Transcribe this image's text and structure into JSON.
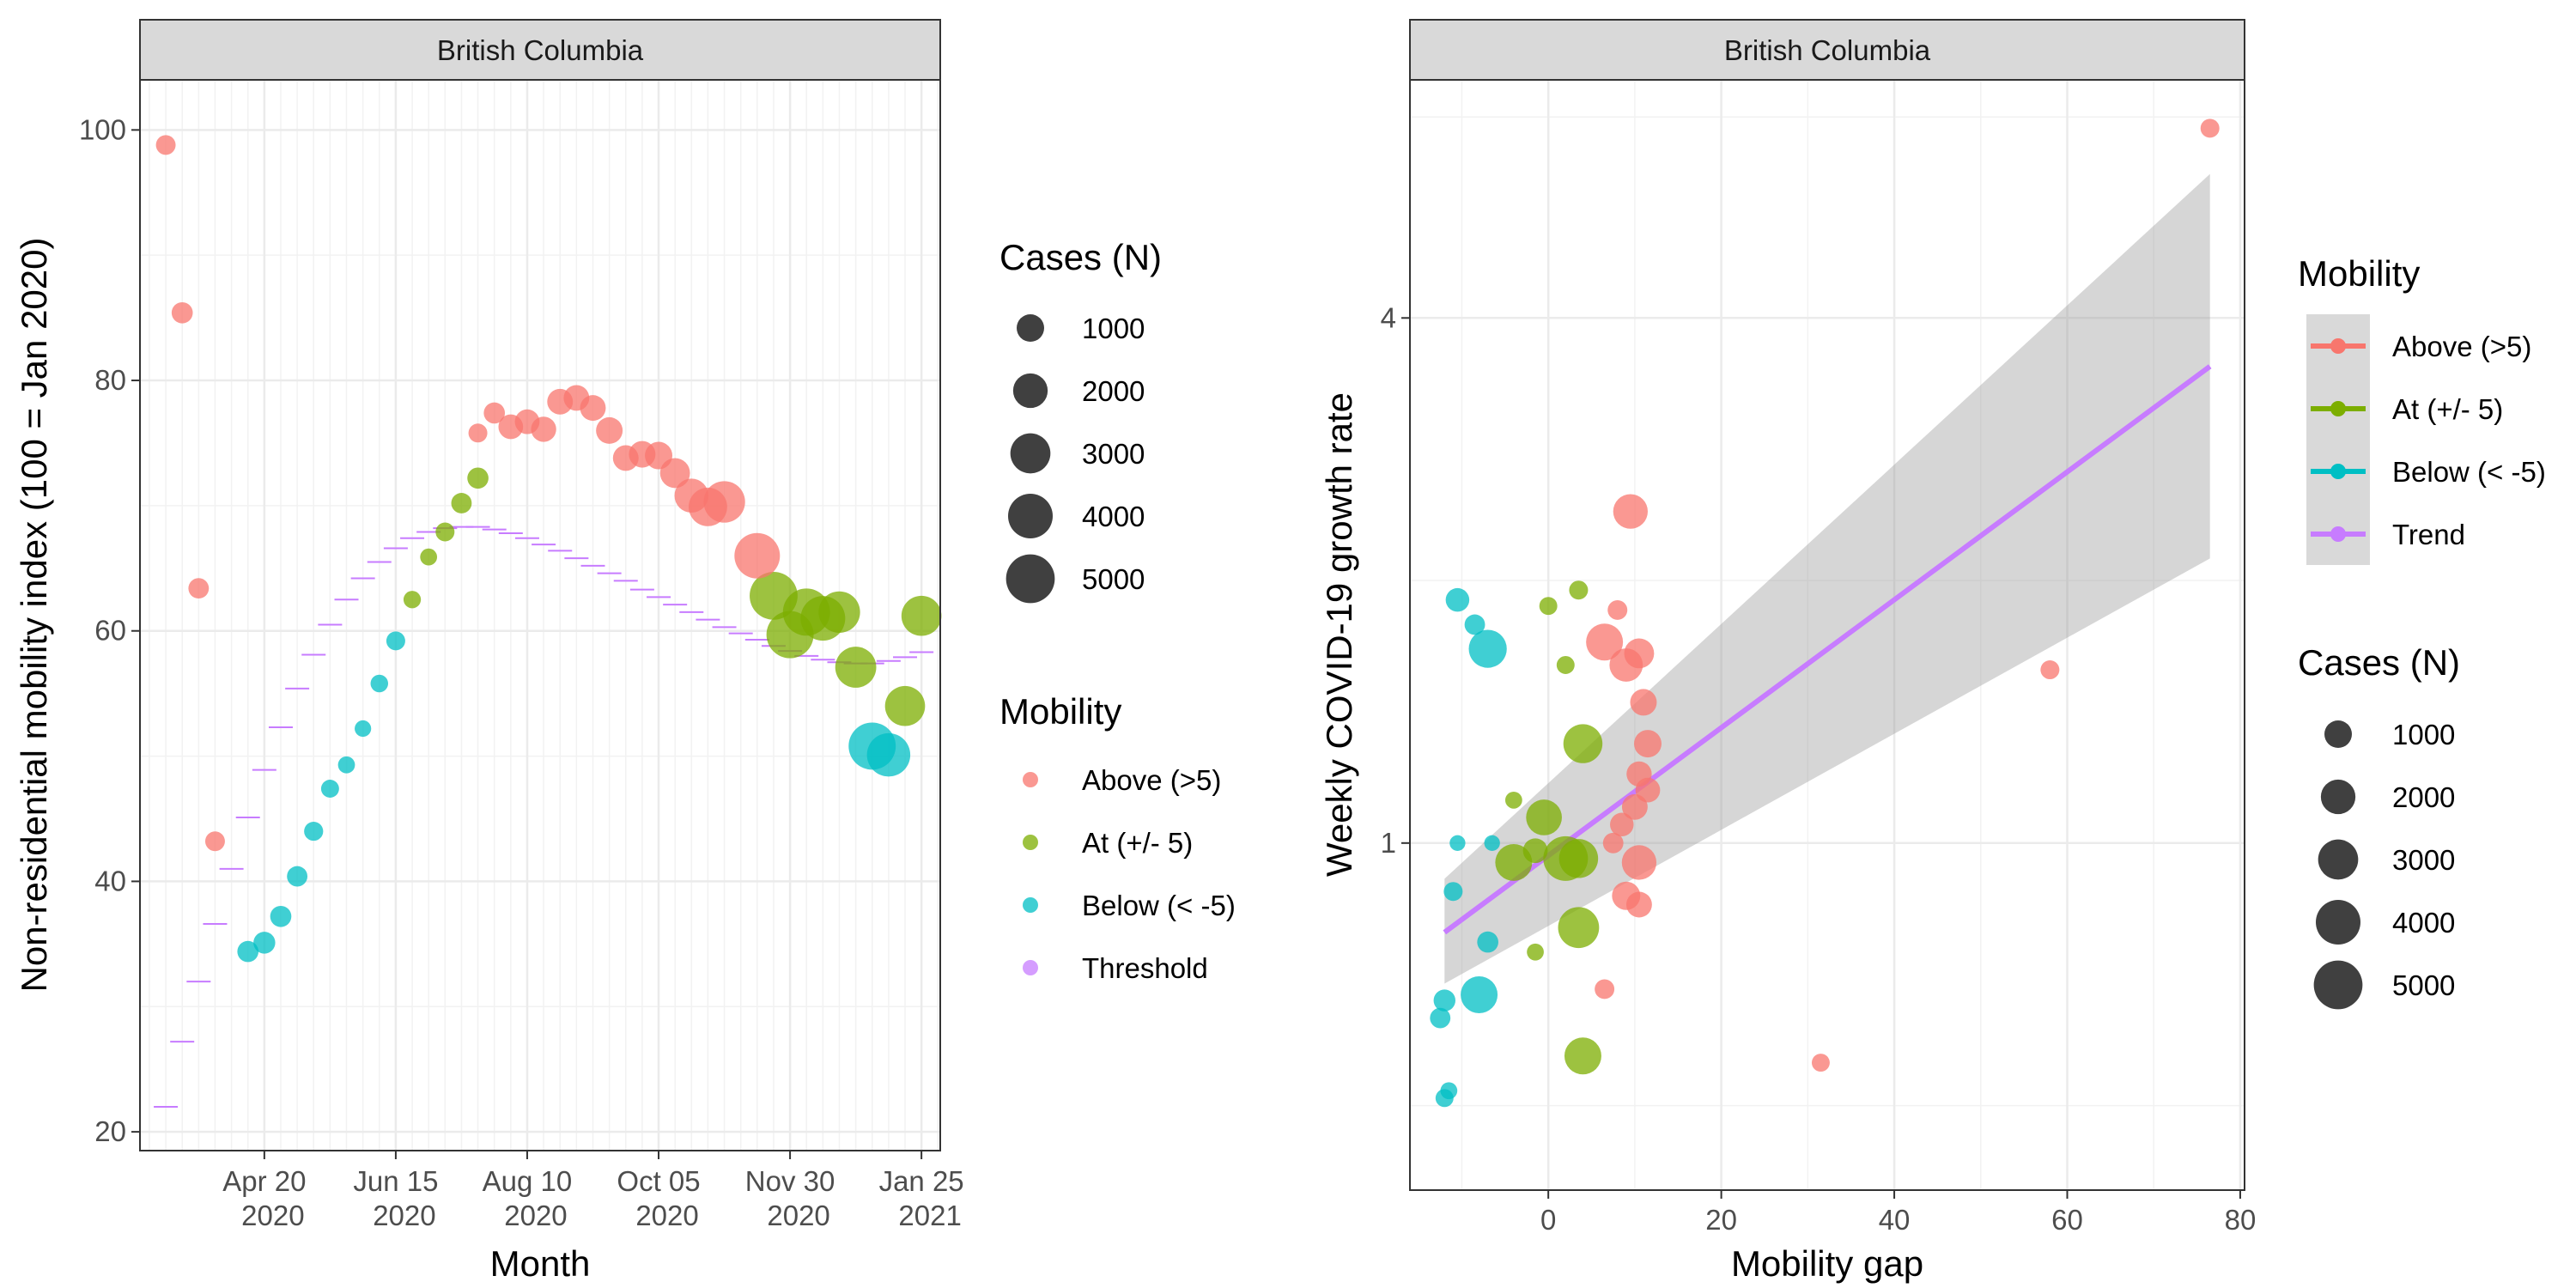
{
  "chart_data": [
    {
      "type": "scatter",
      "strip_title": "British Columbia",
      "xlabel": "Month",
      "ylabel": "Non-residential mobility index (100 = Jan 2020)",
      "x_ticks": [
        {
          "date": "2020-04-20",
          "label_top": "Apr 20",
          "label_bottom": "2020"
        },
        {
          "date": "2020-06-15",
          "label_top": "Jun 15",
          "label_bottom": "2020"
        },
        {
          "date": "2020-08-10",
          "label_top": "Aug 10",
          "label_bottom": "2020"
        },
        {
          "date": "2020-10-05",
          "label_top": "Oct 05",
          "label_bottom": "2020"
        },
        {
          "date": "2020-11-30",
          "label_top": "Nov 30",
          "label_bottom": "2020"
        },
        {
          "date": "2021-01-25",
          "label_top": "Jan 25",
          "label_bottom": "2021"
        }
      ],
      "y_ticks": [
        "20",
        "40",
        "60",
        "80",
        "100"
      ],
      "xlim": [
        "2020-02-27",
        "2021-02-02"
      ],
      "ylim": [
        18.5,
        104
      ],
      "grid": true,
      "series": [
        {
          "name": "Above (>5)",
          "color": "#F8766D",
          "points": [
            {
              "x": "2020-03-09",
              "y": 98.8,
              "cases": 300
            },
            {
              "x": "2020-03-16",
              "y": 85.4,
              "cases": 400
            },
            {
              "x": "2020-03-23",
              "y": 63.4,
              "cases": 350
            },
            {
              "x": "2020-03-30",
              "y": 43.2,
              "cases": 300
            },
            {
              "x": "2020-07-20",
              "y": 75.8,
              "cases": 250
            },
            {
              "x": "2020-07-27",
              "y": 77.4,
              "cases": 400
            },
            {
              "x": "2020-08-03",
              "y": 76.3,
              "cases": 700
            },
            {
              "x": "2020-08-10",
              "y": 76.7,
              "cases": 700
            },
            {
              "x": "2020-08-17",
              "y": 76.1,
              "cases": 750
            },
            {
              "x": "2020-08-24",
              "y": 78.3,
              "cases": 800
            },
            {
              "x": "2020-08-31",
              "y": 78.6,
              "cases": 800
            },
            {
              "x": "2020-09-07",
              "y": 77.8,
              "cases": 800
            },
            {
              "x": "2020-09-14",
              "y": 76.0,
              "cases": 900
            },
            {
              "x": "2020-09-21",
              "y": 73.8,
              "cases": 800
            },
            {
              "x": "2020-09-28",
              "y": 74.1,
              "cases": 900
            },
            {
              "x": "2020-10-05",
              "y": 74.0,
              "cases": 1000
            },
            {
              "x": "2020-10-12",
              "y": 72.6,
              "cases": 1300
            },
            {
              "x": "2020-10-19",
              "y": 70.8,
              "cases": 1900
            },
            {
              "x": "2020-10-26",
              "y": 69.9,
              "cases": 2700
            },
            {
              "x": "2020-11-02",
              "y": 70.3,
              "cases": 3300
            },
            {
              "x": "2020-11-16",
              "y": 66.0,
              "cases": 4200
            }
          ]
        },
        {
          "name": "At (+/- 5)",
          "color": "#7CAE00",
          "points": [
            {
              "x": "2020-06-22",
              "y": 62.5,
              "cases": 170
            },
            {
              "x": "2020-06-29",
              "y": 65.9,
              "cases": 150
            },
            {
              "x": "2020-07-06",
              "y": 67.9,
              "cases": 250
            },
            {
              "x": "2020-07-13",
              "y": 70.2,
              "cases": 350
            },
            {
              "x": "2020-07-20",
              "y": 72.2,
              "cases": 400
            },
            {
              "x": "2020-11-23",
              "y": 62.8,
              "cases": 4800
            },
            {
              "x": "2020-11-30",
              "y": 59.7,
              "cases": 4600
            },
            {
              "x": "2020-12-07",
              "y": 61.5,
              "cases": 4600
            },
            {
              "x": "2020-12-14",
              "y": 61.0,
              "cases": 4000
            },
            {
              "x": "2020-12-21",
              "y": 61.5,
              "cases": 3300
            },
            {
              "x": "2020-12-28",
              "y": 57.1,
              "cases": 3200
            },
            {
              "x": "2021-01-18",
              "y": 54.0,
              "cases": 3000
            },
            {
              "x": "2021-01-25",
              "y": 61.2,
              "cases": 3000
            }
          ]
        },
        {
          "name": "Below (< -5)",
          "color": "#00BFC4",
          "points": [
            {
              "x": "2020-04-13",
              "y": 34.4,
              "cases": 400
            },
            {
              "x": "2020-04-20",
              "y": 35.1,
              "cases": 450
            },
            {
              "x": "2020-04-27",
              "y": 37.2,
              "cases": 400
            },
            {
              "x": "2020-05-04",
              "y": 40.4,
              "cases": 350
            },
            {
              "x": "2020-05-11",
              "y": 44.0,
              "cases": 260
            },
            {
              "x": "2020-05-18",
              "y": 47.4,
              "cases": 200
            },
            {
              "x": "2020-05-25",
              "y": 49.3,
              "cases": 150
            },
            {
              "x": "2020-06-01",
              "y": 52.2,
              "cases": 130
            },
            {
              "x": "2020-06-08",
              "y": 55.8,
              "cases": 180
            },
            {
              "x": "2020-06-15",
              "y": 59.2,
              "cases": 250
            },
            {
              "x": "2021-01-04",
              "y": 50.8,
              "cases": 4600
            },
            {
              "x": "2021-01-11",
              "y": 50.1,
              "cases": 3700
            }
          ]
        }
      ],
      "threshold": {
        "name": "Threshold",
        "color": "#C77CFF",
        "points": [
          {
            "x": "2020-03-09",
            "y": 22.0
          },
          {
            "x": "2020-03-16",
            "y": 27.2
          },
          {
            "x": "2020-03-23",
            "y": 32.0
          },
          {
            "x": "2020-03-30",
            "y": 36.6
          },
          {
            "x": "2020-04-06",
            "y": 41.0
          },
          {
            "x": "2020-04-13",
            "y": 45.1
          },
          {
            "x": "2020-04-20",
            "y": 48.9
          },
          {
            "x": "2020-04-27",
            "y": 52.3
          },
          {
            "x": "2020-05-04",
            "y": 55.4
          },
          {
            "x": "2020-05-11",
            "y": 58.1
          },
          {
            "x": "2020-05-18",
            "y": 60.5
          },
          {
            "x": "2020-05-25",
            "y": 62.5
          },
          {
            "x": "2020-06-01",
            "y": 64.2
          },
          {
            "x": "2020-06-08",
            "y": 65.5
          },
          {
            "x": "2020-06-15",
            "y": 66.6
          },
          {
            "x": "2020-06-22",
            "y": 67.4
          },
          {
            "x": "2020-06-29",
            "y": 67.9
          },
          {
            "x": "2020-07-06",
            "y": 68.2
          },
          {
            "x": "2020-07-13",
            "y": 68.3
          },
          {
            "x": "2020-07-20",
            "y": 68.3
          },
          {
            "x": "2020-07-27",
            "y": 68.1
          },
          {
            "x": "2020-08-03",
            "y": 67.8
          },
          {
            "x": "2020-08-10",
            "y": 67.4
          },
          {
            "x": "2020-08-17",
            "y": 66.9
          },
          {
            "x": "2020-08-24",
            "y": 66.4
          },
          {
            "x": "2020-08-31",
            "y": 65.8
          },
          {
            "x": "2020-09-07",
            "y": 65.2
          },
          {
            "x": "2020-09-14",
            "y": 64.6
          },
          {
            "x": "2020-09-21",
            "y": 64.0
          },
          {
            "x": "2020-09-28",
            "y": 63.3
          },
          {
            "x": "2020-10-05",
            "y": 62.7
          },
          {
            "x": "2020-10-12",
            "y": 62.1
          },
          {
            "x": "2020-10-19",
            "y": 61.5
          },
          {
            "x": "2020-10-26",
            "y": 60.9
          },
          {
            "x": "2020-11-02",
            "y": 60.3
          },
          {
            "x": "2020-11-09",
            "y": 59.8
          },
          {
            "x": "2020-11-16",
            "y": 59.3
          },
          {
            "x": "2020-11-23",
            "y": 58.8
          },
          {
            "x": "2020-11-30",
            "y": 58.4
          },
          {
            "x": "2020-12-07",
            "y": 58.0
          },
          {
            "x": "2020-12-14",
            "y": 57.7
          },
          {
            "x": "2020-12-21",
            "y": 57.5
          },
          {
            "x": "2020-12-28",
            "y": 57.4
          },
          {
            "x": "2021-01-04",
            "y": 57.4
          },
          {
            "x": "2021-01-11",
            "y": 57.6
          },
          {
            "x": "2021-01-18",
            "y": 57.9
          },
          {
            "x": "2021-01-25",
            "y": 58.3
          }
        ]
      },
      "legend_cases": {
        "title": "Cases (N)",
        "items": [
          1000,
          2000,
          3000,
          4000,
          5000
        ],
        "labels": [
          "1000",
          "2000",
          "3000",
          "4000",
          "5000"
        ]
      },
      "legend_mobility": {
        "title": "Mobility",
        "items": [
          {
            "label": "Above (>5)",
            "color": "#F8766D"
          },
          {
            "label": "At (+/- 5)",
            "color": "#7CAE00"
          },
          {
            "label": "Below (< -5)",
            "color": "#00BFC4"
          },
          {
            "label": "Threshold",
            "color": "#C77CFF"
          }
        ]
      },
      "legend_placement": "right"
    },
    {
      "type": "scatter",
      "strip_title": "British Columbia",
      "xlabel": "Mobility gap",
      "ylabel": "Weekly COVID-19 growth rate",
      "x_ticks": [
        "0",
        "20",
        "40",
        "60",
        "80"
      ],
      "y_ticks": [
        "1",
        "4"
      ],
      "y_scale": "log",
      "xlim": [
        -16,
        80.5
      ],
      "ylim": [
        0.4,
        7.5
      ],
      "grid": true,
      "series": [
        {
          "name": "Above (>5)",
          "color": "#F8766D",
          "points": [
            {
              "x": 76.5,
              "y": 6.6,
              "cases": 250
            },
            {
              "x": 58.0,
              "y": 1.58,
              "cases": 250
            },
            {
              "x": 31.5,
              "y": 0.56,
              "cases": 200
            },
            {
              "x": 9.5,
              "y": 2.4,
              "cases": 2000
            },
            {
              "x": 8.0,
              "y": 1.85,
              "cases": 300
            },
            {
              "x": 6.5,
              "y": 1.7,
              "cases": 2400
            },
            {
              "x": 9.0,
              "y": 1.6,
              "cases": 1800
            },
            {
              "x": 10.5,
              "y": 1.65,
              "cases": 1300
            },
            {
              "x": 11.0,
              "y": 1.45,
              "cases": 900
            },
            {
              "x": 11.5,
              "y": 1.3,
              "cases": 1000
            },
            {
              "x": 10.5,
              "y": 1.2,
              "cases": 750
            },
            {
              "x": 11.5,
              "y": 1.15,
              "cases": 700
            },
            {
              "x": 10.0,
              "y": 1.1,
              "cases": 800
            },
            {
              "x": 8.5,
              "y": 1.05,
              "cases": 600
            },
            {
              "x": 7.5,
              "y": 1.0,
              "cases": 350
            },
            {
              "x": 10.5,
              "y": 0.95,
              "cases": 2000
            },
            {
              "x": 9.0,
              "y": 0.87,
              "cases": 1100
            },
            {
              "x": 10.5,
              "y": 0.85,
              "cases": 800
            },
            {
              "x": 6.5,
              "y": 0.68,
              "cases": 300
            }
          ]
        },
        {
          "name": "At (+/- 5)",
          "color": "#7CAE00",
          "points": [
            {
              "x": 3.5,
              "y": 1.95,
              "cases": 250
            },
            {
              "x": 0.0,
              "y": 1.87,
              "cases": 200
            },
            {
              "x": 2.0,
              "y": 1.6,
              "cases": 200
            },
            {
              "x": 4.0,
              "y": 1.3,
              "cases": 2800
            },
            {
              "x": -4.0,
              "y": 1.12,
              "cases": 150
            },
            {
              "x": -0.5,
              "y": 1.07,
              "cases": 2200
            },
            {
              "x": -1.5,
              "y": 0.98,
              "cases": 700
            },
            {
              "x": 2.0,
              "y": 0.96,
              "cases": 4000
            },
            {
              "x": 3.5,
              "y": 0.96,
              "cases": 2800
            },
            {
              "x": -4.0,
              "y": 0.95,
              "cases": 2400
            },
            {
              "x": 3.5,
              "y": 0.8,
              "cases": 3200
            },
            {
              "x": -1.5,
              "y": 0.75,
              "cases": 150
            },
            {
              "x": 4.0,
              "y": 0.57,
              "cases": 2400
            }
          ]
        },
        {
          "name": "Below (< -5)",
          "color": "#00BFC4",
          "points": [
            {
              "x": -10.5,
              "y": 1.9,
              "cases": 600
            },
            {
              "x": -8.5,
              "y": 1.78,
              "cases": 350
            },
            {
              "x": -7.0,
              "y": 1.67,
              "cases": 2600
            },
            {
              "x": -10.5,
              "y": 1.0,
              "cases": 100
            },
            {
              "x": -11.0,
              "y": 0.88,
              "cases": 250
            },
            {
              "x": -6.5,
              "y": 1.0,
              "cases": 100
            },
            {
              "x": -7.0,
              "y": 0.77,
              "cases": 400
            },
            {
              "x": -8.0,
              "y": 0.67,
              "cases": 2400
            },
            {
              "x": -12.0,
              "y": 0.66,
              "cases": 450
            },
            {
              "x": -12.5,
              "y": 0.63,
              "cases": 350
            },
            {
              "x": -11.5,
              "y": 0.52,
              "cases": 150
            },
            {
              "x": -12.0,
              "y": 0.51,
              "cases": 200
            }
          ]
        }
      ],
      "trend": {
        "name": "Trend",
        "color": "#C77CFF",
        "x": [
          -12,
          76.5
        ],
        "y": [
          0.79,
          3.52
        ],
        "ci_lower": [
          0.69,
          2.12
        ],
        "ci_upper": [
          0.91,
          5.85
        ]
      },
      "legend_mobility": {
        "title": "Mobility",
        "items": [
          {
            "label": "Above (>5)",
            "color": "#F8766D"
          },
          {
            "label": "At (+/- 5)",
            "color": "#7CAE00"
          },
          {
            "label": "Below (< -5)",
            "color": "#00BFC4"
          },
          {
            "label": "Trend",
            "color": "#C77CFF"
          }
        ]
      },
      "legend_cases": {
        "title": "Cases (N)",
        "items": [
          1000,
          2000,
          3000,
          4000,
          5000
        ],
        "labels": [
          "1000",
          "2000",
          "3000",
          "4000",
          "5000"
        ]
      },
      "legend_placement": "right"
    }
  ]
}
